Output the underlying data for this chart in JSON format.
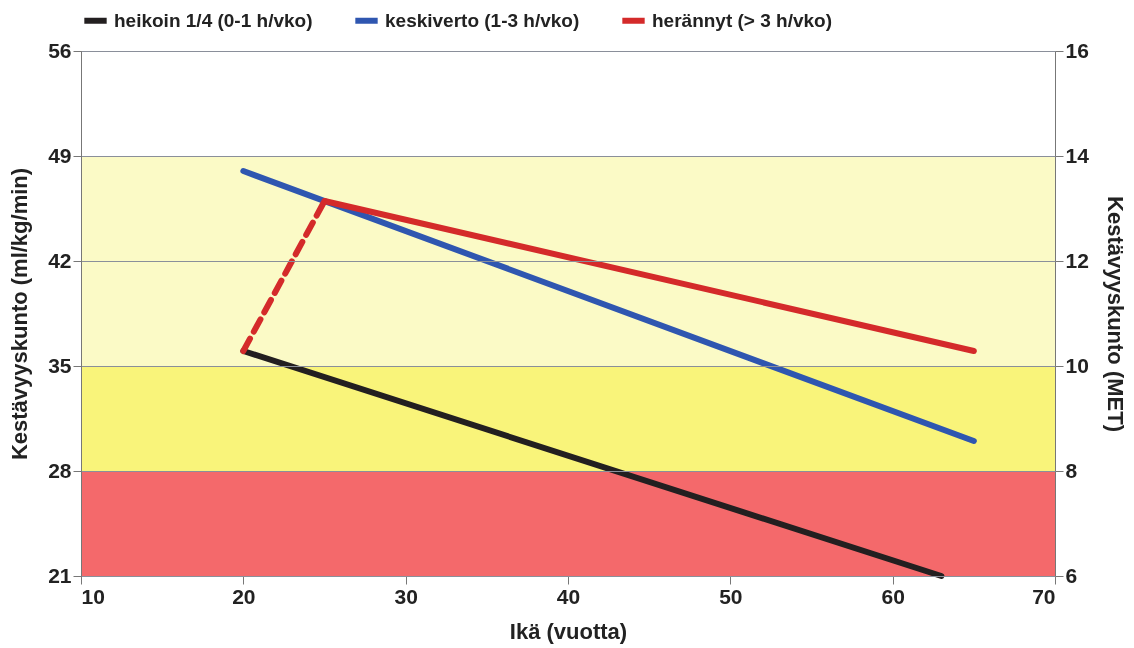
{
  "chart_data": {
    "type": "line",
    "xlabel": "Ikä (vuotta)",
    "ylabel": "Kestävyyskunto (ml/kg/min)",
    "y2label": "Kestävyyskunto (MET)",
    "xlim": [
      10,
      70
    ],
    "xticks": [
      10,
      20,
      30,
      40,
      50,
      60,
      70
    ],
    "ylim": [
      21,
      56
    ],
    "yticks": [
      21,
      28,
      35,
      42,
      49,
      56
    ],
    "y2lim": [
      6,
      16
    ],
    "y2ticks": [
      6,
      8,
      10,
      12,
      14,
      16
    ],
    "grid": "y",
    "legend": "top",
    "marker": "none",
    "line_style": "solid",
    "bands": [
      {
        "axis": "y",
        "from": 21,
        "to": 28,
        "color": "#f4696b"
      },
      {
        "axis": "y",
        "from": 28,
        "to": 35,
        "color": "#f9f47a"
      },
      {
        "axis": "y",
        "from": 35,
        "to": 49,
        "color": "#fbfac6"
      }
    ],
    "series": [
      {
        "name": "heikoin 1/4 (0-1 h/vko)",
        "color": "#231f20",
        "x": [
          20,
          63
        ],
        "values": [
          36,
          21
        ]
      },
      {
        "name": "keskiverto (1-3 h/vko)",
        "color": "#2f56b0",
        "x": [
          20,
          65
        ],
        "values": [
          48,
          30
        ]
      },
      {
        "name": "herännyt (> 3 h/vko)",
        "color": "#d42a2a",
        "x": [
          25,
          65
        ],
        "values": [
          46,
          36
        ]
      },
      {
        "color": "#d42a2a",
        "x": [
          20,
          25
        ],
        "values": [
          36,
          46
        ],
        "line_style": "dashed"
      }
    ]
  }
}
